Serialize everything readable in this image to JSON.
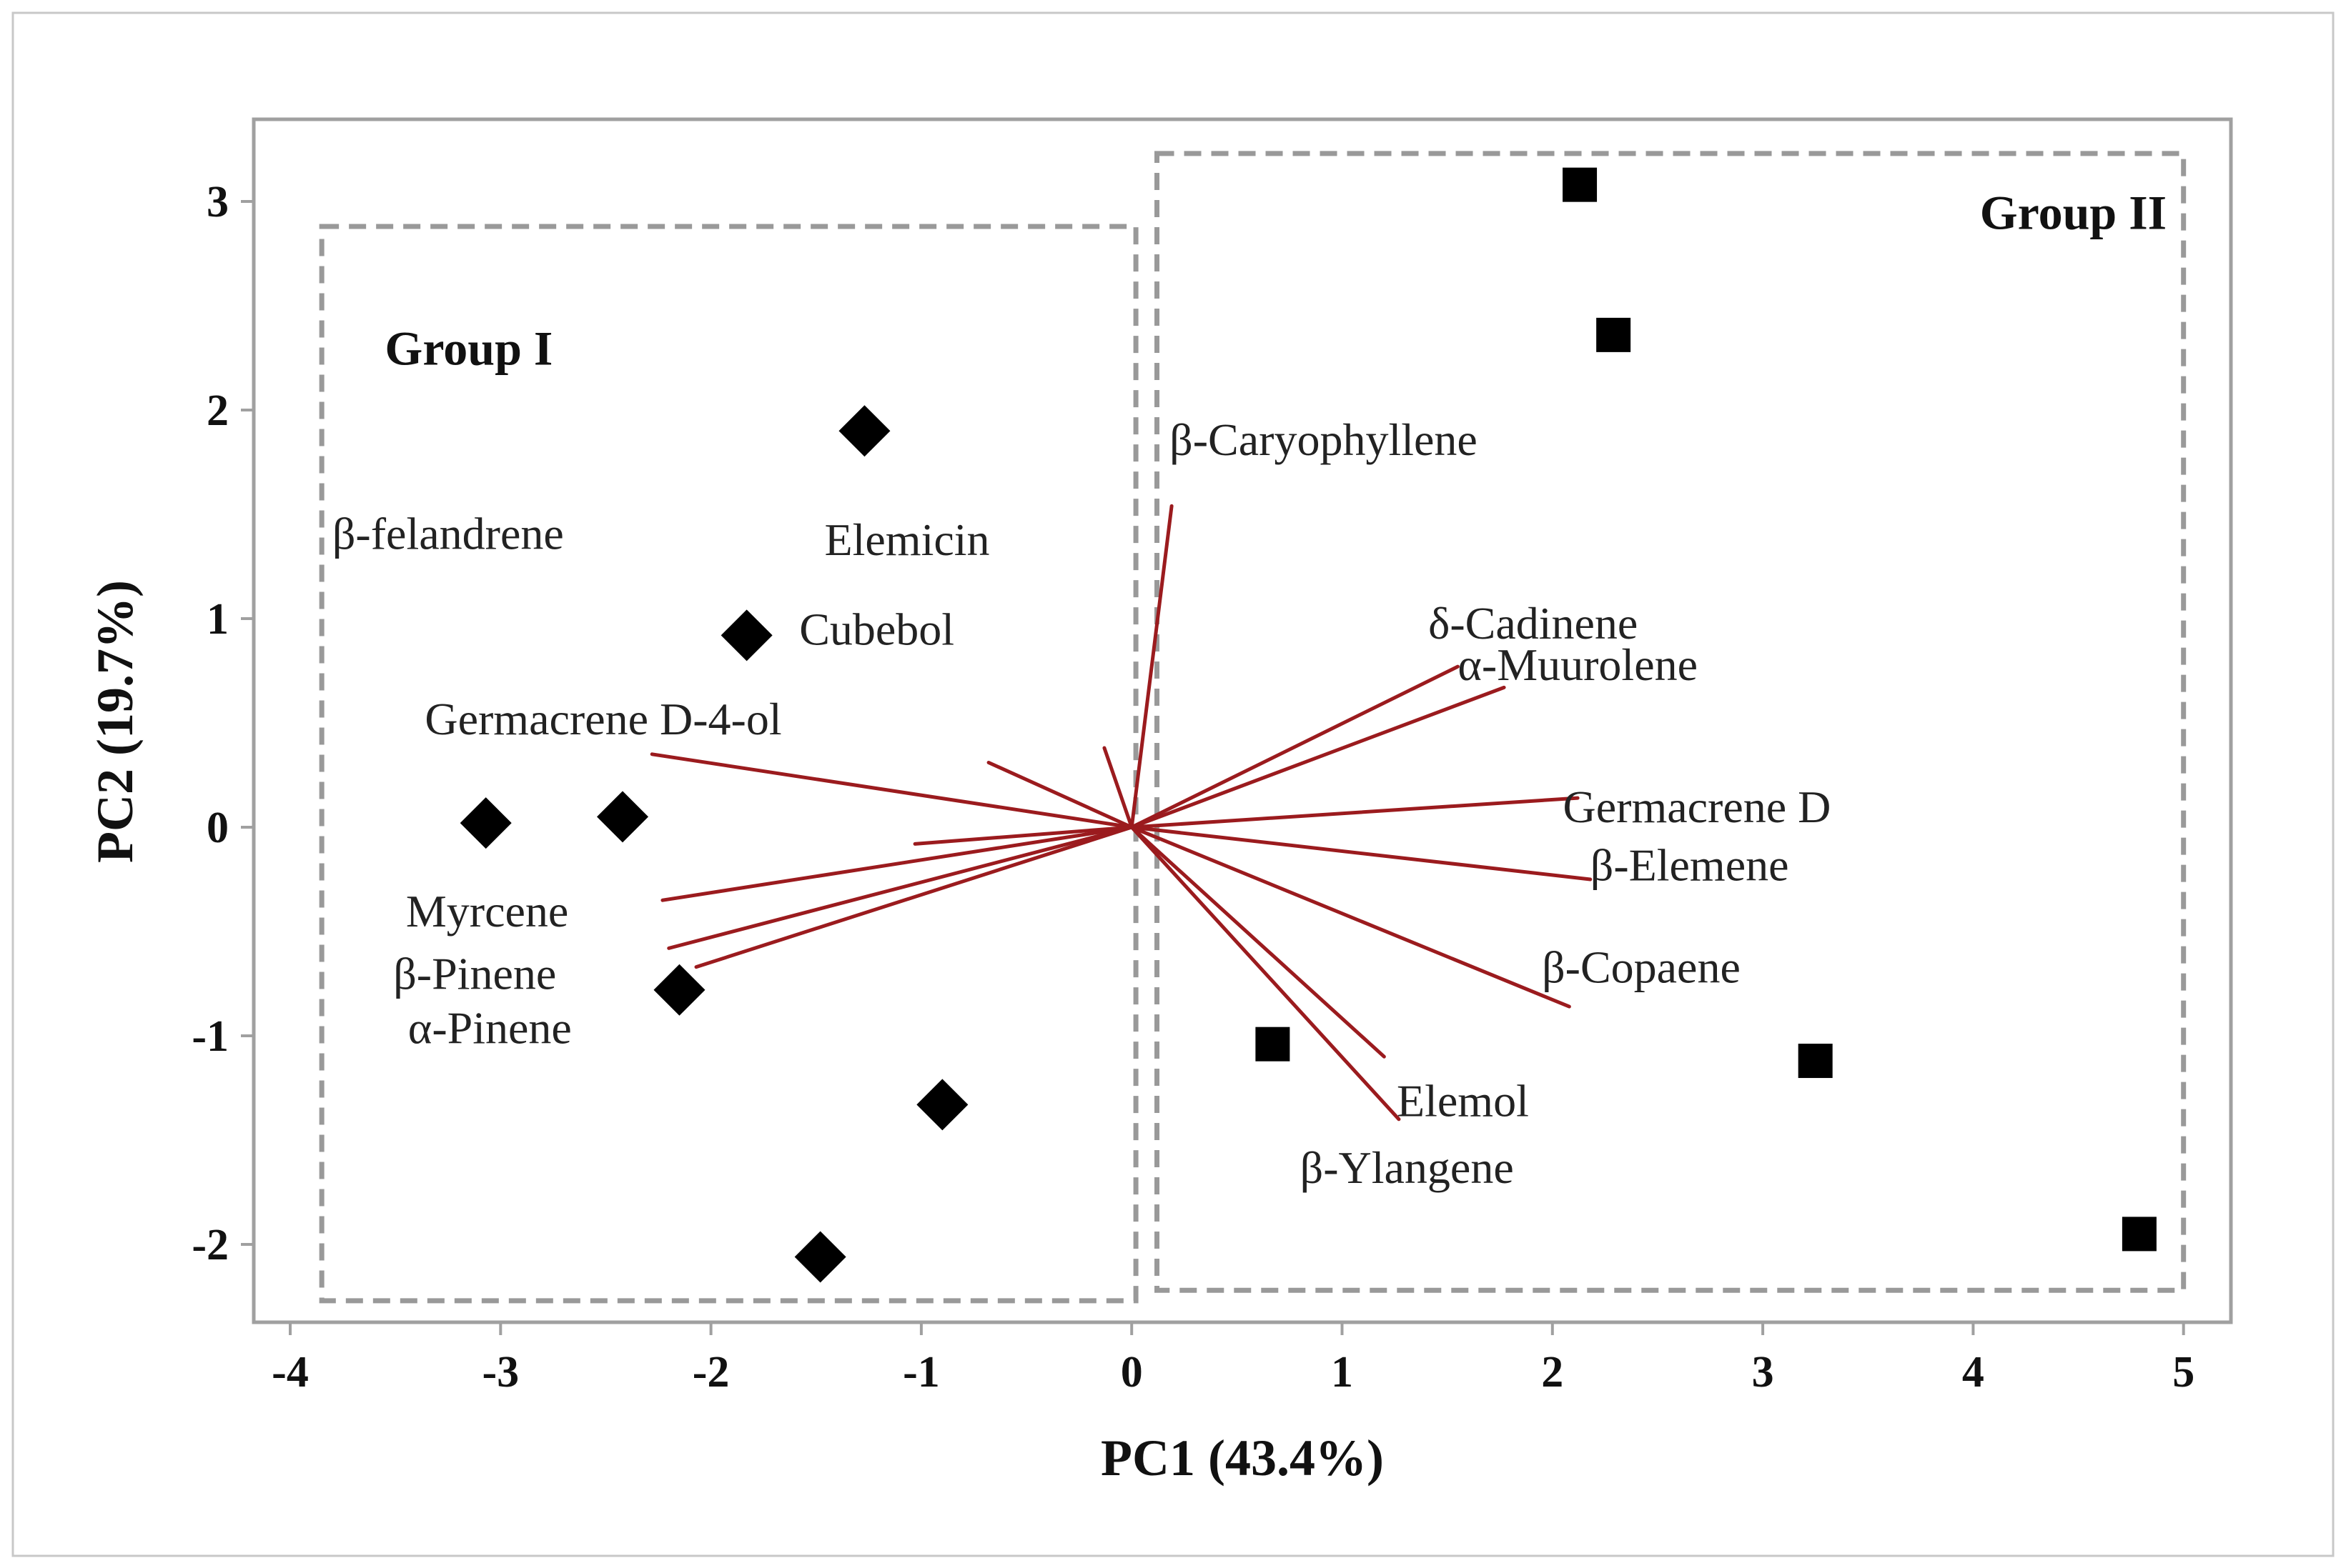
{
  "chart_data": {
    "type": "scatter",
    "subtype": "pca-biplot",
    "xlabel": "PC1 (43.4%)",
    "ylabel": "PC2 (19.7%)",
    "xlim": [
      -4.15,
      5.25
    ],
    "ylim": [
      -2.3,
      3.3
    ],
    "xticks": [
      -4,
      -3,
      -2,
      -1,
      0,
      1,
      2,
      3,
      4,
      5
    ],
    "yticks": [
      -2,
      -1,
      0,
      1,
      2,
      3
    ],
    "xtick_labels": [
      "-4",
      "-3",
      "-2",
      "-1",
      "0",
      "1",
      "2",
      "3",
      "4",
      "5"
    ],
    "ytick_labels": [
      "-2",
      "-1",
      "0",
      "1",
      "2",
      "3"
    ],
    "grid": false,
    "colors": {
      "loading": "#9B1B1E",
      "point": "#000000",
      "group_box": "#999999",
      "frame": "#a0a0a0"
    },
    "groups": [
      {
        "label": "Group I",
        "box": {
          "x0": -3.85,
          "x1": 0.02,
          "y0": -2.27,
          "y1": 2.88
        }
      },
      {
        "label": "Group II",
        "box": {
          "x0": 0.12,
          "x1": 5.0,
          "y0": -2.22,
          "y1": 3.23
        }
      }
    ],
    "series": [
      {
        "name": "Group I samples",
        "marker": "diamond",
        "points": [
          {
            "x": -1.27,
            "y": 1.9
          },
          {
            "x": -1.83,
            "y": 0.92
          },
          {
            "x": -3.07,
            "y": 0.02
          },
          {
            "x": -2.42,
            "y": 0.05
          },
          {
            "x": -2.15,
            "y": -0.78
          },
          {
            "x": -0.9,
            "y": -1.33
          },
          {
            "x": -1.48,
            "y": -2.06
          }
        ]
      },
      {
        "name": "Group II samples",
        "marker": "square",
        "points": [
          {
            "x": 2.13,
            "y": 3.08
          },
          {
            "x": 2.29,
            "y": 2.36
          },
          {
            "x": 0.67,
            "y": -1.04
          },
          {
            "x": 3.25,
            "y": -1.12
          },
          {
            "x": 4.79,
            "y": -1.95
          }
        ]
      }
    ],
    "loadings": [
      {
        "name": "β-Caryophyllene",
        "x": 0.19,
        "y": 1.54
      },
      {
        "name": "δ-Cadinene",
        "x": 1.55,
        "y": 0.77
      },
      {
        "name": "α-Muurolene",
        "x": 1.77,
        "y": 0.67
      },
      {
        "name": "Germacrene D",
        "x": 2.12,
        "y": 0.14
      },
      {
        "name": "β-Elemene",
        "x": 2.18,
        "y": -0.25
      },
      {
        "name": "β-Copaene",
        "x": 2.08,
        "y": -0.86
      },
      {
        "name": "Elemol",
        "x": 1.2,
        "y": -1.1
      },
      {
        "name": "β-Ylangene",
        "x": 1.27,
        "y": -1.4
      },
      {
        "name": "Germacrene D-4-ol",
        "x": -2.28,
        "y": 0.35
      },
      {
        "name": "Myrcene",
        "x": -2.23,
        "y": -0.35
      },
      {
        "name": "β-Pinene",
        "x": -2.2,
        "y": -0.58
      },
      {
        "name": "α-Pinene",
        "x": -2.07,
        "y": -0.67
      },
      {
        "name": "Elemicin",
        "x": -0.68,
        "y": 0.31
      },
      {
        "name": "Cubebol",
        "x": -1.03,
        "y": -0.08
      },
      {
        "name": "β-felandrene",
        "x": -0.13,
        "y": 0.38
      }
    ],
    "labels": [
      {
        "text": "β-felandrene",
        "x": -3.8,
        "y": 1.41
      },
      {
        "text": "Elemicin",
        "x": -1.46,
        "y": 1.38
      },
      {
        "text": "Cubebol",
        "x": -1.58,
        "y": 0.95
      },
      {
        "text": "Germacrene D-4-ol",
        "x": -3.36,
        "y": 0.52
      },
      {
        "text": "Myrcene",
        "x": -3.45,
        "y": -0.4
      },
      {
        "text": "β-Pinene",
        "x": -3.51,
        "y": -0.7
      },
      {
        "text": "α-Pinene",
        "x": -3.44,
        "y": -0.96
      },
      {
        "text": "β-Caryophyllene",
        "x": 0.18,
        "y": 1.86
      },
      {
        "text": "δ-Cadinene",
        "x": 1.41,
        "y": 0.98
      },
      {
        "text": "α-Muurolene",
        "x": 1.55,
        "y": 0.78
      },
      {
        "text": "Germacrene D",
        "x": 2.05,
        "y": 0.1
      },
      {
        "text": "β-Elemene",
        "x": 2.18,
        "y": -0.18
      },
      {
        "text": "β-Copaene",
        "x": 1.95,
        "y": -0.67
      },
      {
        "text": "Elemol",
        "x": 1.26,
        "y": -1.31
      },
      {
        "text": "β-Ylangene",
        "x": 0.8,
        "y": -1.63
      }
    ]
  }
}
